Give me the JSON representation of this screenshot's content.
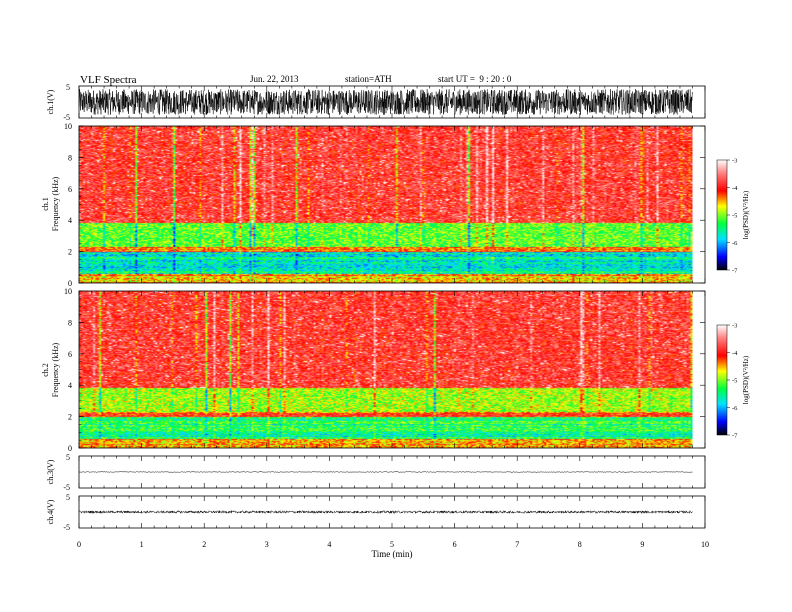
{
  "header": {
    "title": "VLF Spectra",
    "date": "Jun. 22, 2013",
    "station": "station=ATH",
    "start": "start UT =  9 : 20 : 0"
  },
  "x_axis_label": "Time (min)",
  "colors": {
    "spectrogram_scale": [
      "#000000",
      "#0000ff",
      "#00e0ff",
      "#00ff40",
      "#ffff00",
      "#ff0000",
      "#ff8080",
      "#ffffff"
    ]
  },
  "chart_data": [
    {
      "type": "line",
      "panel": "ch1-waveform",
      "ylabel": "ch.1(V)",
      "ylim": [
        -5,
        5
      ],
      "y_ticks": [
        "5",
        "-5"
      ],
      "xlim": [
        0,
        10
      ],
      "amplitude_approx": 4,
      "data_end_min": 9.8
    },
    {
      "type": "heatmap",
      "panel": "ch1-spectrogram",
      "ylabel_line1": "ch.1",
      "ylabel_line2": "Frequency (kHz)",
      "ylim": [
        0,
        10
      ],
      "y_ticks": [
        "0",
        "2",
        "4",
        "6",
        "8",
        "10"
      ],
      "xlim": [
        0,
        10
      ],
      "data_end_min": 9.8,
      "colorbar": {
        "label": "log(PSD)(V²/Hz)",
        "range": [
          -7,
          -3
        ],
        "ticks": [
          "-3",
          "-4",
          "-5",
          "-6",
          "-7"
        ]
      },
      "bands_kHz": [
        {
          "from": 0,
          "to": 0.6,
          "level": -4.5
        },
        {
          "from": 0.6,
          "to": 2.0,
          "level": -5.6
        },
        {
          "from": 2.0,
          "to": 2.3,
          "level": -4.3
        },
        {
          "from": 2.3,
          "to": 3.8,
          "level": -5.1
        },
        {
          "from": 3.8,
          "to": 10,
          "level": -3.9
        }
      ]
    },
    {
      "type": "heatmap",
      "panel": "ch2-spectrogram",
      "ylabel_line1": "ch.2",
      "ylabel_line2": "Frequency (kHz)",
      "ylim": [
        0,
        10
      ],
      "y_ticks": [
        "0",
        "2",
        "4",
        "6",
        "8",
        "10"
      ],
      "xlim": [
        0,
        10
      ],
      "data_end_min": 9.8,
      "colorbar": {
        "label": "log(PSD)(V²/Hz)",
        "range": [
          -7,
          -3
        ],
        "ticks": [
          "-3",
          "-4",
          "-5",
          "-6",
          "-7"
        ]
      },
      "bands_kHz": [
        {
          "from": 0,
          "to": 0.6,
          "level": -4.5
        },
        {
          "from": 0.6,
          "to": 2.0,
          "level": -5.4
        },
        {
          "from": 2.0,
          "to": 2.3,
          "level": -4.2
        },
        {
          "from": 2.3,
          "to": 3.8,
          "level": -4.9
        },
        {
          "from": 3.8,
          "to": 10,
          "level": -3.9
        }
      ]
    },
    {
      "type": "line",
      "panel": "ch3-waveform",
      "ylabel": "ch.3(V)",
      "ylim": [
        -5,
        5
      ],
      "y_ticks": [
        "5",
        "-5"
      ],
      "xlim": [
        0,
        10
      ],
      "baseline": 0,
      "amplitude_approx": 0.1,
      "data_end_min": 9.8
    },
    {
      "type": "line",
      "panel": "ch4-waveform",
      "ylabel": "ch.4(V)",
      "ylim": [
        -5,
        5
      ],
      "y_ticks": [
        "5",
        "-5"
      ],
      "xlim": [
        0,
        10
      ],
      "baseline": 0,
      "amplitude_approx": 0.4,
      "data_end_min": 9.8,
      "x_ticks": [
        "0",
        "1",
        "2",
        "3",
        "4",
        "5",
        "6",
        "7",
        "8",
        "9",
        "10"
      ]
    }
  ]
}
